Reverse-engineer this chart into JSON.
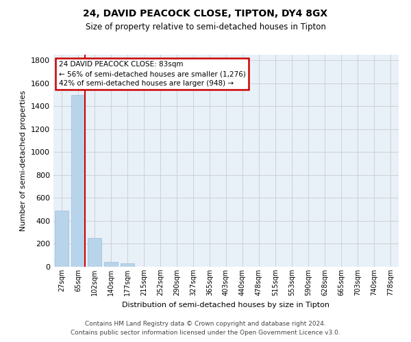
{
  "title": "24, DAVID PEACOCK CLOSE, TIPTON, DY4 8GX",
  "subtitle": "Size of property relative to semi-detached houses in Tipton",
  "xlabel": "Distribution of semi-detached houses by size in Tipton",
  "ylabel": "Number of semi-detached properties",
  "categories": [
    "27sqm",
    "65sqm",
    "102sqm",
    "140sqm",
    "177sqm",
    "215sqm",
    "252sqm",
    "290sqm",
    "327sqm",
    "365sqm",
    "403sqm",
    "440sqm",
    "478sqm",
    "515sqm",
    "553sqm",
    "590sqm",
    "628sqm",
    "665sqm",
    "703sqm",
    "740sqm",
    "778sqm"
  ],
  "values": [
    490,
    1500,
    250,
    40,
    30,
    0,
    0,
    0,
    0,
    0,
    0,
    0,
    0,
    0,
    0,
    0,
    0,
    0,
    0,
    0,
    0
  ],
  "bar_color": "#b8d4ea",
  "bar_edge_color": "#9abcd8",
  "grid_color": "#cccccc",
  "bg_color": "#e8f0f8",
  "annotation_line1": "24 DAVID PEACOCK CLOSE: 83sqm",
  "annotation_line2": "← 56% of semi-detached houses are smaller (1,276)",
  "annotation_line3": "42% of semi-detached houses are larger (948) →",
  "annotation_box_color": "#ffffff",
  "annotation_box_edge": "#cc0000",
  "property_line_color": "#cc0000",
  "property_bin_index": 1,
  "ylim": [
    0,
    1850
  ],
  "yticks": [
    0,
    200,
    400,
    600,
    800,
    1000,
    1200,
    1400,
    1600,
    1800
  ],
  "footnote1": "Contains HM Land Registry data © Crown copyright and database right 2024.",
  "footnote2": "Contains public sector information licensed under the Open Government Licence v3.0."
}
